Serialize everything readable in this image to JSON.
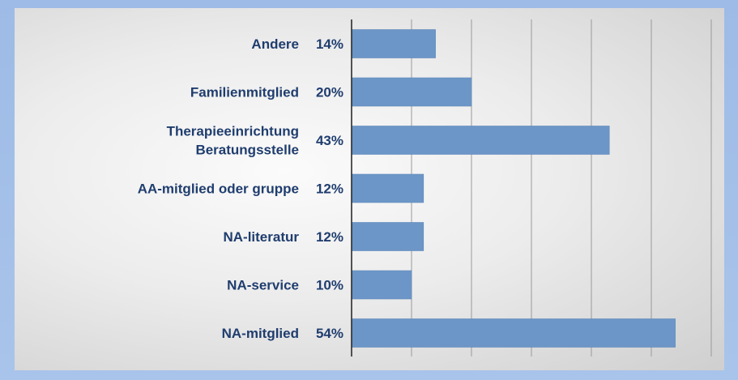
{
  "chart_data": {
    "type": "bar",
    "orientation": "horizontal",
    "categories": [
      [
        "Andere"
      ],
      [
        "Familienmitglied"
      ],
      [
        "Therapieeinrichtung",
        "Beratungsstelle"
      ],
      [
        "AA-mitglied oder gruppe"
      ],
      [
        "NA-literatur"
      ],
      [
        "NA-service"
      ],
      [
        "NA-mitglied"
      ]
    ],
    "values": [
      14,
      20,
      43,
      12,
      12,
      10,
      54
    ],
    "value_labels": [
      "14%",
      "20%",
      "43%",
      "12%",
      "12%",
      "10%",
      "54%"
    ],
    "xlim": [
      0,
      60
    ],
    "x_grid_step": 10,
    "grid": true,
    "title": "",
    "xlabel": "",
    "ylabel": ""
  },
  "colors": {
    "bar": "#6c96c7",
    "label_text": "#1f3d6e",
    "frame": "#9dbbe6"
  }
}
